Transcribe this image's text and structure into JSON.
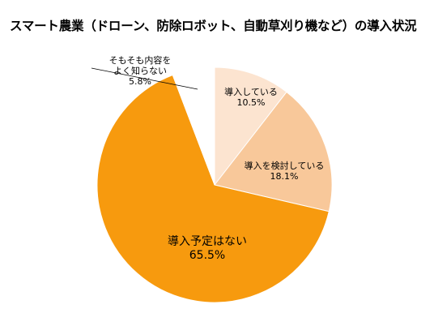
{
  "chart_data": {
    "type": "pie",
    "title": "スマート農業（ドローン、防除ロボット、自動草刈り機など）の導入状況",
    "start_angle_deg": 0,
    "direction": "clockwise",
    "slices": [
      {
        "name": "導入している",
        "lines": [
          "導入している"
        ],
        "value": 10.5,
        "value_label": "10.5%",
        "color": "#FCE4D0"
      },
      {
        "name": "導入を検討している",
        "lines": [
          "導入を検討している"
        ],
        "value": 18.1,
        "value_label": "18.1%",
        "color": "#F8C89A"
      },
      {
        "name": "導入予定はない",
        "lines": [
          "導入予定はない"
        ],
        "value": 65.5,
        "value_label": "65.5%",
        "color": "#F79A0E"
      },
      {
        "name": "そもそも内容をよく知らない",
        "lines": [
          "そもそも内容を",
          "よく知らない"
        ],
        "value": 5.8,
        "value_label": "5.8%",
        "color": "#FFFFFF"
      }
    ],
    "legend": "none"
  }
}
